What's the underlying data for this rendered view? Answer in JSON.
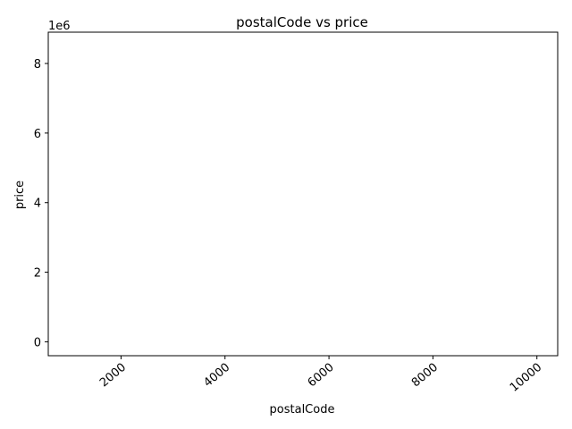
{
  "chart_data": {
    "type": "scatter",
    "title": "postalCode vs price",
    "xlabel": "postalCode",
    "ylabel": "price",
    "y_offset_label": "1e6",
    "xlim": [
      600,
      10400
    ],
    "ylim": [
      -400000,
      8900000
    ],
    "x_ticks": [
      2000,
      4000,
      6000,
      8000,
      10000
    ],
    "x_tick_labels": [
      "2000",
      "4000",
      "6000",
      "8000",
      "10000"
    ],
    "y_ticks": [
      0,
      2000000,
      4000000,
      6000000,
      8000000
    ],
    "y_tick_labels": [
      "0",
      "2",
      "4",
      "6",
      "8"
    ],
    "x_tick_rotation_deg": -40,
    "grid": false,
    "legend": "none",
    "series": [
      {
        "x": [],
        "y": []
      }
    ],
    "colors": {
      "axis": "#000000",
      "background": "#ffffff",
      "marker": "#1f77b4"
    }
  }
}
